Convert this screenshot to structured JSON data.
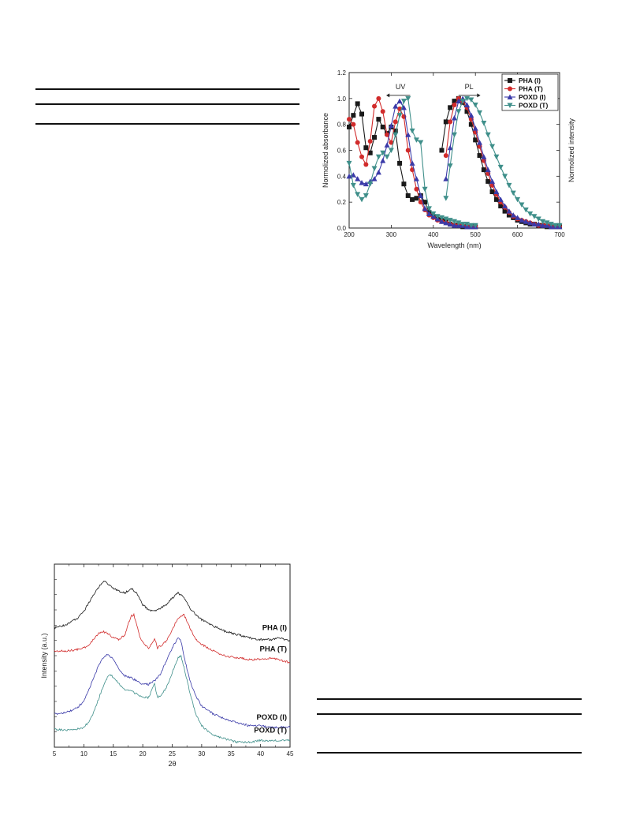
{
  "colors": {
    "black": "#1a1a1a",
    "red": "#d12b2b",
    "blue": "#3a3aa8",
    "teal": "#3f8f8a"
  },
  "chart_data": [
    {
      "type": "line",
      "xlabel": "Wavelength (nm)",
      "ylabel": "Normolized absorbance",
      "y2label": "Normolized intensity",
      "xlim": [
        200,
        700
      ],
      "ylim": [
        0,
        1.2
      ],
      "xticks": [
        "200",
        "300",
        "400",
        "500",
        "600",
        "700"
      ],
      "yticks": [
        "0.0",
        "0.2",
        "0.4",
        "0.6",
        "0.8",
        "1.0",
        "1.2"
      ],
      "legend_position": "top-right",
      "annotations": [
        "UV",
        "PL"
      ],
      "series": [
        {
          "name": "PHA (I)",
          "marker": "square",
          "color_key": "black",
          "uv": {
            "x": [
              200,
              210,
              220,
              230,
              240,
              250,
              260,
              270,
              280,
              290,
              300,
              310,
              320,
              330,
              340,
              350,
              360,
              370,
              380,
              390,
              400,
              410,
              420,
              430,
              440,
              450,
              460,
              470,
              480,
              490,
              500
            ],
            "y": [
              0.78,
              0.87,
              0.96,
              0.88,
              0.62,
              0.58,
              0.7,
              0.84,
              0.78,
              0.73,
              0.78,
              0.75,
              0.5,
              0.34,
              0.25,
              0.22,
              0.23,
              0.25,
              0.2,
              0.12,
              0.09,
              0.07,
              0.06,
              0.05,
              0.03,
              0.02,
              0.02,
              0.01,
              0.01,
              0.01,
              0.01
            ]
          },
          "pl": {
            "x": [
              420,
              430,
              440,
              450,
              460,
              470,
              480,
              490,
              500,
              510,
              520,
              530,
              540,
              550,
              560,
              570,
              580,
              590,
              600,
              610,
              620,
              630,
              640,
              650,
              660,
              670,
              680,
              690,
              700
            ],
            "y": [
              0.6,
              0.82,
              0.93,
              0.98,
              1.0,
              0.97,
              0.9,
              0.8,
              0.68,
              0.56,
              0.45,
              0.36,
              0.28,
              0.22,
              0.17,
              0.13,
              0.1,
              0.08,
              0.06,
              0.05,
              0.04,
              0.03,
              0.03,
              0.02,
              0.02,
              0.01,
              0.01,
              0.01,
              0.01
            ]
          }
        },
        {
          "name": "PHA (T)",
          "marker": "circle",
          "color_key": "red",
          "uv": {
            "x": [
              200,
              210,
              220,
              230,
              240,
              250,
              260,
              270,
              280,
              290,
              300,
              310,
              320,
              330,
              340,
              350,
              360,
              370,
              380,
              390,
              400,
              410,
              420,
              430,
              440,
              450,
              460,
              470,
              480,
              490,
              500
            ],
            "y": [
              0.84,
              0.8,
              0.66,
              0.55,
              0.49,
              0.67,
              0.94,
              1.0,
              0.9,
              0.72,
              0.66,
              0.82,
              0.92,
              0.86,
              0.6,
              0.45,
              0.3,
              0.2,
              0.14,
              0.1,
              0.08,
              0.06,
              0.05,
              0.04,
              0.03,
              0.02,
              0.02,
              0.02,
              0.01,
              0.01,
              0.01
            ]
          },
          "pl": {
            "x": [
              430,
              440,
              450,
              460,
              470,
              480,
              490,
              500,
              510,
              520,
              530,
              540,
              550,
              560,
              570,
              580,
              590,
              600,
              610,
              620,
              630,
              640,
              650,
              660,
              670,
              680,
              690,
              700
            ],
            "y": [
              0.56,
              0.82,
              0.95,
              1.0,
              0.98,
              0.93,
              0.84,
              0.74,
              0.63,
              0.52,
              0.42,
              0.33,
              0.26,
              0.2,
              0.16,
              0.12,
              0.09,
              0.07,
              0.06,
              0.05,
              0.04,
              0.03,
              0.02,
              0.02,
              0.02,
              0.01,
              0.01,
              0.01
            ]
          }
        },
        {
          "name": "POXD (I)",
          "marker": "triangle-up",
          "color_key": "blue",
          "uv": {
            "x": [
              200,
              210,
              220,
              230,
              240,
              250,
              260,
              270,
              280,
              290,
              300,
              310,
              320,
              330,
              340,
              350,
              360,
              370,
              380,
              390,
              400,
              410,
              420,
              430,
              440,
              450,
              460,
              470,
              480,
              490,
              500
            ],
            "y": [
              0.4,
              0.41,
              0.38,
              0.35,
              0.34,
              0.36,
              0.38,
              0.43,
              0.52,
              0.64,
              0.79,
              0.94,
              0.98,
              0.93,
              0.72,
              0.5,
              0.38,
              0.25,
              0.15,
              0.11,
              0.09,
              0.07,
              0.05,
              0.04,
              0.03,
              0.02,
              0.02,
              0.02,
              0.01,
              0.01,
              0.01
            ]
          },
          "pl": {
            "x": [
              430,
              440,
              450,
              460,
              470,
              480,
              490,
              500,
              510,
              520,
              530,
              540,
              550,
              560,
              570,
              580,
              590,
              600,
              610,
              620,
              630,
              640,
              650,
              660,
              670,
              680,
              690,
              700
            ],
            "y": [
              0.38,
              0.62,
              0.85,
              0.98,
              1.0,
              0.95,
              0.87,
              0.77,
              0.66,
              0.55,
              0.45,
              0.36,
              0.28,
              0.22,
              0.17,
              0.13,
              0.1,
              0.08,
              0.06,
              0.05,
              0.04,
              0.03,
              0.03,
              0.02,
              0.02,
              0.01,
              0.01,
              0.01
            ]
          }
        },
        {
          "name": "POXD (T)",
          "marker": "triangle-down",
          "color_key": "teal",
          "uv": {
            "x": [
              200,
              210,
              220,
              230,
              240,
              250,
              260,
              270,
              280,
              290,
              300,
              310,
              320,
              330,
              340,
              350,
              360,
              370,
              380,
              390,
              400,
              410,
              420,
              430,
              440,
              450,
              460,
              470,
              480,
              490,
              500
            ],
            "y": [
              0.5,
              0.33,
              0.26,
              0.22,
              0.25,
              0.34,
              0.46,
              0.55,
              0.58,
              0.55,
              0.6,
              0.72,
              0.87,
              0.98,
              1.0,
              0.75,
              0.68,
              0.66,
              0.3,
              0.15,
              0.11,
              0.09,
              0.08,
              0.07,
              0.06,
              0.05,
              0.04,
              0.03,
              0.03,
              0.02,
              0.02
            ]
          },
          "pl": {
            "x": [
              430,
              440,
              450,
              460,
              470,
              480,
              490,
              500,
              510,
              520,
              530,
              540,
              550,
              560,
              570,
              580,
              590,
              600,
              610,
              620,
              630,
              640,
              650,
              660,
              670,
              680,
              690,
              700
            ],
            "y": [
              0.23,
              0.48,
              0.72,
              0.9,
              0.98,
              1.0,
              0.99,
              0.95,
              0.89,
              0.81,
              0.72,
              0.63,
              0.55,
              0.47,
              0.4,
              0.33,
              0.27,
              0.22,
              0.18,
              0.14,
              0.11,
              0.09,
              0.07,
              0.05,
              0.04,
              0.03,
              0.02,
              0.02
            ]
          }
        }
      ]
    },
    {
      "type": "line",
      "xlabel": "2θ",
      "ylabel": "Intensity (a.u.)",
      "xlim": [
        5,
        45
      ],
      "xticks": [
        "5",
        "10",
        "15",
        "20",
        "25",
        "30",
        "35",
        "40",
        "45"
      ],
      "series_labels": [
        "PHA (I)",
        "PHA (T)",
        "POXD (I)",
        "POXD (T)"
      ],
      "series": [
        {
          "name": "PHA (I)",
          "color_key": "black",
          "x": [
            5,
            7,
            9,
            10,
            11,
            12,
            13,
            13.5,
            14,
            15,
            16,
            17,
            18,
            19,
            20,
            21,
            22,
            23,
            24,
            25,
            26,
            26.5,
            27,
            28,
            29,
            30,
            32,
            34,
            36,
            38,
            40,
            42,
            43,
            44,
            45
          ],
          "y": [
            0.72,
            0.74,
            0.78,
            0.82,
            0.88,
            0.94,
            0.99,
            1.0,
            0.99,
            0.96,
            0.94,
            0.93,
            0.96,
            0.93,
            0.86,
            0.83,
            0.82,
            0.84,
            0.86,
            0.9,
            0.93,
            0.92,
            0.9,
            0.84,
            0.8,
            0.77,
            0.73,
            0.7,
            0.68,
            0.66,
            0.65,
            0.65,
            0.66,
            0.65,
            0.64
          ]
        },
        {
          "name": "PHA (T)",
          "color_key": "red",
          "x": [
            5,
            7,
            9,
            10,
            11,
            12,
            13,
            14,
            15,
            16,
            17,
            17.5,
            18,
            18.5,
            19,
            19.5,
            20,
            21,
            21.5,
            22,
            22.5,
            23,
            24,
            25,
            26,
            27,
            28,
            29,
            30,
            32,
            34,
            36,
            38,
            40,
            42,
            43,
            44,
            45
          ],
          "y": [
            0.58,
            0.58,
            0.59,
            0.6,
            0.62,
            0.67,
            0.7,
            0.69,
            0.66,
            0.65,
            0.68,
            0.74,
            0.79,
            0.8,
            0.74,
            0.67,
            0.63,
            0.6,
            0.62,
            0.66,
            0.6,
            0.61,
            0.64,
            0.71,
            0.78,
            0.8,
            0.72,
            0.65,
            0.62,
            0.58,
            0.55,
            0.54,
            0.53,
            0.53,
            0.54,
            0.53,
            0.52,
            0.51
          ]
        },
        {
          "name": "POXD (I)",
          "color_key": "blue",
          "x": [
            5,
            7,
            9,
            10,
            11,
            12,
            13,
            14,
            15,
            16,
            17,
            18,
            19,
            20,
            21,
            22,
            23,
            24,
            25,
            26,
            26.5,
            27,
            28,
            29,
            30,
            32,
            34,
            36,
            38,
            40,
            42,
            44,
            45
          ],
          "y": [
            0.2,
            0.21,
            0.24,
            0.28,
            0.36,
            0.45,
            0.53,
            0.56,
            0.53,
            0.47,
            0.43,
            0.42,
            0.4,
            0.38,
            0.38,
            0.4,
            0.44,
            0.52,
            0.6,
            0.66,
            0.64,
            0.55,
            0.4,
            0.31,
            0.25,
            0.2,
            0.17,
            0.15,
            0.13,
            0.13,
            0.12,
            0.12,
            0.12
          ]
        },
        {
          "name": "POXD (T)",
          "color_key": "teal",
          "x": [
            5,
            7,
            9,
            10,
            11,
            12,
            13,
            14,
            14.5,
            15,
            16,
            17,
            18,
            19,
            20,
            21,
            21.5,
            22,
            22.5,
            23,
            24,
            25,
            26,
            26.5,
            27,
            28,
            29,
            30,
            32,
            34,
            36,
            38,
            40,
            42,
            44,
            45
          ],
          "y": [
            0.11,
            0.1,
            0.11,
            0.12,
            0.16,
            0.24,
            0.34,
            0.42,
            0.44,
            0.42,
            0.38,
            0.35,
            0.34,
            0.32,
            0.3,
            0.3,
            0.34,
            0.38,
            0.3,
            0.31,
            0.36,
            0.45,
            0.54,
            0.55,
            0.48,
            0.33,
            0.2,
            0.13,
            0.07,
            0.05,
            0.03,
            0.03,
            0.04,
            0.04,
            0.04,
            0.04
          ]
        }
      ]
    }
  ]
}
